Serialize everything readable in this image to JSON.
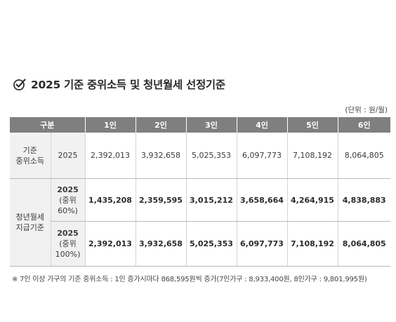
{
  "title": "2025 기준 중위소득 및 청년월세 선정기준",
  "unit": "(단위 : 원/월)",
  "table": {
    "header": [
      "구분",
      "1인",
      "2인",
      "3인",
      "4인",
      "5인",
      "6인"
    ],
    "median_income": {
      "label": "기준\n중위소득",
      "year": "2025",
      "values": [
        "2,392,013",
        "3,932,658",
        "5,025,353",
        "6,097,773",
        "7,108,192",
        "8,064,805"
      ]
    },
    "youth_rent": {
      "label": "청년월세\n지급기준",
      "rows": [
        {
          "year": "2025",
          "sub": "(중위\n60%)",
          "values": [
            "1,435,208",
            "2,359,595",
            "3,015,212",
            "3,658,664",
            "4,264,915",
            "4,838,883"
          ]
        },
        {
          "year": "2025",
          "sub": "(중위\n100%)",
          "values": [
            "2,392,013",
            "3,932,658",
            "5,025,353",
            "6,097,773",
            "7,108,192",
            "8,064,805"
          ]
        }
      ]
    }
  },
  "note": "※ 7인 이상 가구의 기준 중위소득 : 1인 증가시마다 868,595원씩 증가(7인가구 : 8,933,400원, 8인가구 : 9,801,995원)",
  "icon": "check-circle-icon",
  "colors": {
    "header_bg": "#7f7f7f",
    "label_bg": "#f1f1f1"
  }
}
